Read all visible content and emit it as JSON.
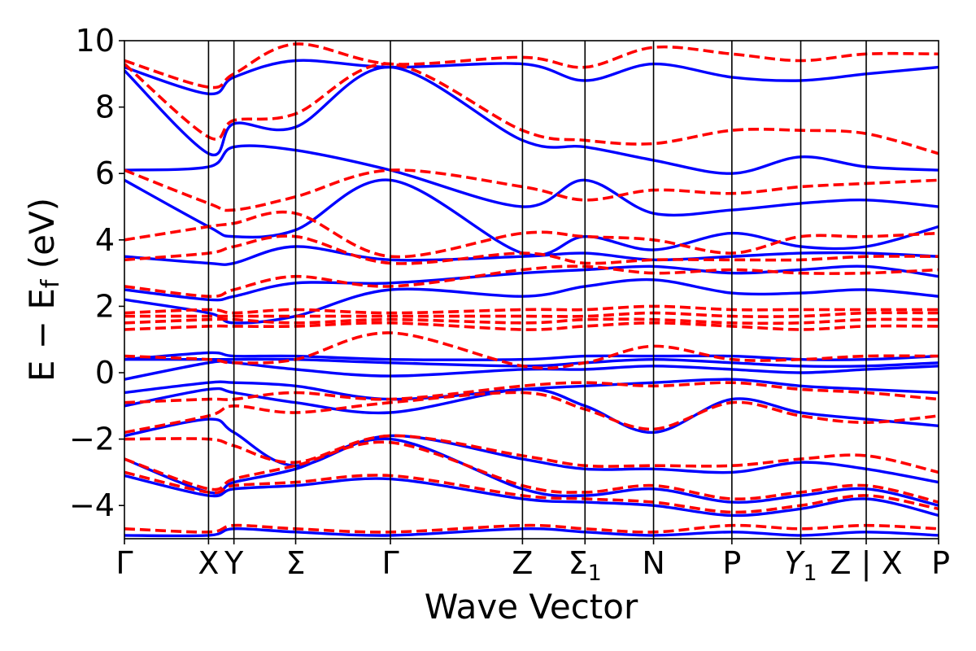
{
  "chart_data": {
    "type": "line",
    "xlabel": "Wave Vector",
    "ylabel": "E − E",
    "ylabel_sub": "f",
    "ylabel_unit": " (eV)",
    "ylim": [
      -5,
      10
    ],
    "yticks": [
      -4,
      -2,
      0,
      2,
      4,
      6,
      8,
      10
    ],
    "ytick_labels": [
      "−4",
      "−2",
      "0",
      "2",
      "4",
      "6",
      "8",
      "10"
    ],
    "grid": false,
    "legend": "none",
    "kpath_positions": [
      0,
      0.1033,
      0.1345,
      0.2103,
      0.3267,
      0.4889,
      0.5657,
      0.6499,
      0.7461,
      0.8307,
      0.9111,
      1.0
    ],
    "kpath_labels": [
      {
        "text": "Γ",
        "sub": ""
      },
      {
        "text": "X",
        "sub": ""
      },
      {
        "text": "Y",
        "sub": ""
      },
      {
        "text": "Σ",
        "sub": ""
      },
      {
        "text": "Γ",
        "sub": ""
      },
      {
        "text": "Z",
        "sub": ""
      },
      {
        "text": "Σ",
        "sub": "1"
      },
      {
        "text": "N",
        "sub": ""
      },
      {
        "text": "P",
        "sub": ""
      },
      {
        "text": "Y",
        "sub": "1",
        "italic": true
      },
      {
        "text": "Z | X",
        "sub": ""
      },
      {
        "text": "P",
        "sub": ""
      }
    ],
    "series": [
      {
        "style": "solid",
        "color": "#0000ff",
        "bands": [
          [
            -4.9,
            -4.9,
            -4.7,
            -4.8,
            -4.9,
            -4.7,
            -4.8,
            -4.9,
            -4.8,
            -4.9,
            -4.8,
            -4.9
          ],
          [
            -3.1,
            -3.7,
            -3.5,
            -3.4,
            -3.2,
            -3.8,
            -3.9,
            -4.0,
            -4.3,
            -4.1,
            -3.8,
            -4.3
          ],
          [
            -2.6,
            -3.6,
            -3.3,
            -2.9,
            -2.0,
            -3.5,
            -3.7,
            -3.5,
            -3.9,
            -3.7,
            -3.5,
            -4.0
          ],
          [
            -1.9,
            -1.4,
            -1.8,
            -2.8,
            -1.9,
            -2.6,
            -2.9,
            -2.9,
            -3.0,
            -2.7,
            -2.9,
            -3.3
          ],
          [
            -1.0,
            -0.5,
            -0.6,
            -0.9,
            -1.2,
            -0.5,
            -1.0,
            -1.8,
            -0.8,
            -1.2,
            -1.4,
            -1.6
          ],
          [
            -0.6,
            -0.3,
            -0.3,
            -0.4,
            -0.8,
            -0.5,
            -0.4,
            -0.3,
            -0.2,
            -0.4,
            -0.5,
            -0.6
          ],
          [
            -0.2,
            0.3,
            0.3,
            0.1,
            -0.1,
            0.1,
            0.1,
            0.2,
            0.1,
            0.0,
            0.1,
            0.2
          ],
          [
            0.4,
            0.4,
            0.4,
            0.4,
            0.3,
            0.2,
            0.3,
            0.4,
            0.3,
            0.2,
            0.2,
            0.3
          ],
          [
            0.4,
            0.6,
            0.5,
            0.5,
            0.4,
            0.4,
            0.5,
            0.5,
            0.5,
            0.4,
            0.4,
            0.5
          ],
          [
            2.2,
            1.8,
            1.5,
            1.7,
            2.5,
            2.3,
            2.6,
            2.8,
            2.4,
            2.4,
            2.5,
            2.3
          ],
          [
            2.5,
            2.2,
            2.3,
            2.7,
            2.7,
            3.0,
            3.1,
            3.2,
            3.0,
            3.1,
            3.2,
            2.9
          ],
          [
            3.5,
            3.3,
            3.3,
            3.8,
            3.4,
            3.5,
            3.6,
            3.4,
            3.5,
            3.6,
            3.6,
            3.5
          ],
          [
            5.8,
            4.4,
            4.1,
            4.3,
            5.8,
            3.6,
            4.1,
            3.7,
            4.2,
            3.8,
            3.8,
            4.4
          ],
          [
            6.1,
            6.2,
            6.8,
            6.7,
            6.1,
            5.0,
            5.8,
            4.8,
            4.9,
            5.1,
            5.2,
            5.0
          ],
          [
            9.1,
            6.6,
            7.5,
            7.4,
            9.2,
            7.0,
            6.8,
            6.4,
            6.0,
            6.5,
            6.2,
            6.1
          ],
          [
            9.2,
            8.4,
            8.9,
            9.4,
            9.2,
            9.3,
            8.8,
            9.3,
            8.9,
            8.8,
            9.0,
            9.2
          ]
        ]
      },
      {
        "style": "dashed",
        "color": "#ff0000",
        "bands": [
          [
            -4.7,
            -4.8,
            -4.6,
            -4.7,
            -4.8,
            -4.6,
            -4.7,
            -4.8,
            -4.6,
            -4.7,
            -4.6,
            -4.7
          ],
          [
            -3.0,
            -3.6,
            -3.4,
            -3.3,
            -3.1,
            -3.7,
            -3.8,
            -3.9,
            -4.2,
            -4.0,
            -3.7,
            -4.1
          ],
          [
            -2.6,
            -3.5,
            -3.2,
            -2.8,
            -2.1,
            -3.4,
            -3.6,
            -3.4,
            -3.8,
            -3.6,
            -3.4,
            -3.9
          ],
          [
            -2.0,
            -2.0,
            -2.2,
            -2.7,
            -1.9,
            -2.5,
            -2.8,
            -2.8,
            -2.8,
            -2.6,
            -2.5,
            -3.0
          ],
          [
            -1.8,
            -1.3,
            -1.0,
            -1.2,
            -0.9,
            -0.6,
            -1.1,
            -1.7,
            -0.9,
            -1.3,
            -1.5,
            -1.3
          ],
          [
            -0.9,
            -0.8,
            -0.8,
            -0.6,
            -0.8,
            -0.4,
            -0.3,
            -0.4,
            -0.3,
            -0.5,
            -0.6,
            -0.8
          ],
          [
            0.5,
            0.4,
            0.3,
            0.4,
            1.2,
            0.2,
            0.3,
            0.8,
            0.4,
            0.4,
            0.5,
            0.5
          ],
          [
            1.3,
            1.4,
            1.4,
            1.4,
            1.5,
            1.3,
            1.4,
            1.5,
            1.4,
            1.3,
            1.4,
            1.4
          ],
          [
            1.5,
            1.6,
            1.6,
            1.5,
            1.6,
            1.5,
            1.6,
            1.6,
            1.5,
            1.5,
            1.6,
            1.6
          ],
          [
            1.7,
            1.7,
            1.7,
            1.7,
            1.7,
            1.7,
            1.7,
            1.8,
            1.7,
            1.7,
            1.8,
            1.8
          ],
          [
            1.8,
            1.9,
            1.8,
            1.9,
            1.8,
            1.9,
            1.9,
            2.0,
            1.9,
            1.9,
            1.9,
            1.9
          ],
          [
            2.6,
            2.3,
            2.5,
            2.9,
            2.6,
            3.1,
            3.2,
            3.0,
            3.1,
            3.0,
            3.0,
            3.1
          ],
          [
            3.4,
            3.6,
            3.8,
            4.1,
            3.3,
            3.6,
            3.3,
            3.4,
            3.4,
            3.4,
            3.5,
            3.5
          ],
          [
            4.0,
            4.4,
            4.5,
            4.8,
            3.5,
            4.2,
            4.1,
            4.0,
            3.6,
            4.1,
            4.1,
            4.2
          ],
          [
            6.1,
            5.1,
            4.9,
            5.3,
            6.1,
            5.6,
            5.2,
            5.5,
            5.4,
            5.6,
            5.7,
            5.8
          ],
          [
            9.3,
            7.1,
            7.6,
            7.8,
            9.3,
            7.3,
            7.0,
            6.9,
            7.3,
            7.3,
            7.2,
            6.6
          ],
          [
            9.4,
            8.6,
            9.0,
            9.9,
            9.3,
            9.5,
            9.2,
            9.8,
            9.6,
            9.4,
            9.6,
            9.6
          ]
        ]
      }
    ]
  }
}
